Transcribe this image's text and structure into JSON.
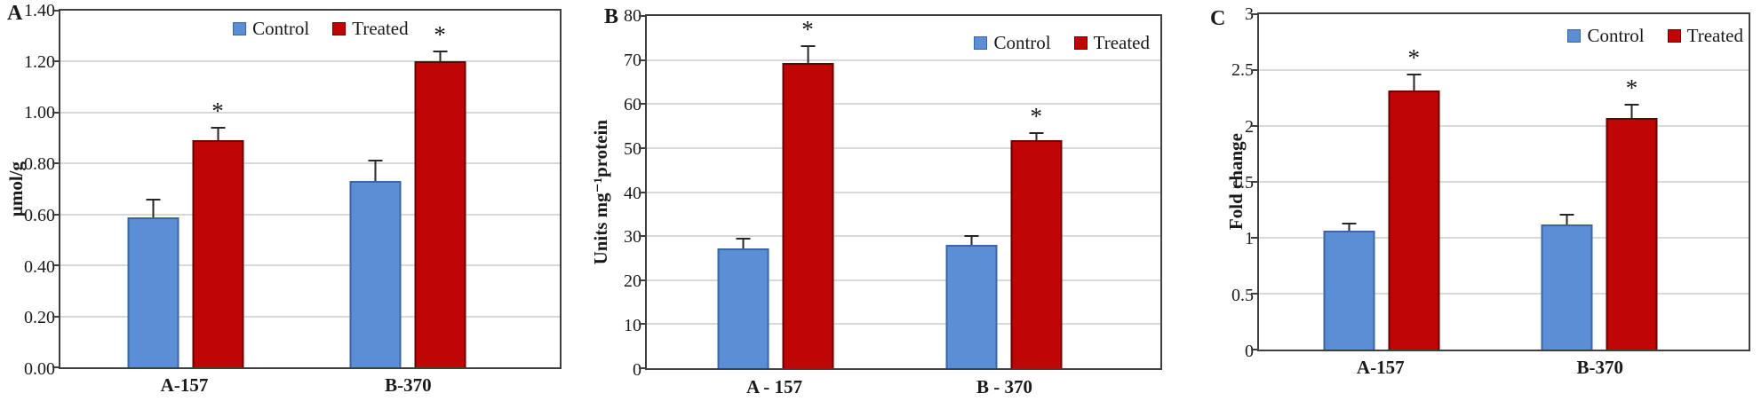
{
  "colors": {
    "control_fill": "#5B8FD5",
    "control_border": "#3A66A4",
    "treated_fill": "#C00505",
    "treated_border": "#6B0000",
    "gridline": "#D9D9D9",
    "frame": "#3F3F3F",
    "error_bar": "#262626"
  },
  "chart_data": [
    {
      "type": "bar",
      "panel_label": "A",
      "ylabel": "µmol/g",
      "ylim": [
        0,
        1.4
      ],
      "ytick_labels": [
        "0.00",
        "0.20",
        "0.40",
        "0.60",
        "0.80",
        "1.00",
        "1.20",
        "1.40"
      ],
      "categories": [
        "A-157",
        "B-370"
      ],
      "series": [
        {
          "name": "Control",
          "values": [
            0.59,
            0.73
          ],
          "errors": [
            0.07,
            0.08
          ],
          "sig": [
            false,
            false
          ]
        },
        {
          "name": "Treated",
          "values": [
            0.89,
            1.2
          ],
          "errors": [
            0.05,
            0.04
          ],
          "sig": [
            true,
            true
          ]
        }
      ],
      "sig_marker": "*",
      "legend_position": "top-center",
      "grid": true
    },
    {
      "type": "bar",
      "panel_label": "B",
      "ylabel": "Units mg⁻¹protein",
      "ylim": [
        0,
        80
      ],
      "ytick_labels": [
        "0",
        "10",
        "20",
        "30",
        "40",
        "50",
        "60",
        "70",
        "80"
      ],
      "categories": [
        "A - 157",
        "B - 370"
      ],
      "series": [
        {
          "name": "Control",
          "values": [
            27.2,
            28.0
          ],
          "errors": [
            2.2,
            2.0
          ],
          "sig": [
            false,
            false
          ]
        },
        {
          "name": "Treated",
          "values": [
            69.4,
            51.8
          ],
          "errors": [
            3.7,
            1.6
          ],
          "sig": [
            true,
            true
          ]
        }
      ],
      "sig_marker": "*",
      "legend_position": "top-right",
      "grid": true
    },
    {
      "type": "bar",
      "panel_label": "C",
      "ylabel": "Fold change",
      "ylim": [
        0,
        3
      ],
      "ytick_labels": [
        "0",
        "0.5",
        "1",
        "1.5",
        "2",
        "2.5",
        "3"
      ],
      "categories": [
        "A-157",
        "B-370"
      ],
      "series": [
        {
          "name": "Control",
          "values": [
            1.06,
            1.12
          ],
          "errors": [
            0.07,
            0.09
          ],
          "sig": [
            false,
            false
          ]
        },
        {
          "name": "Treated",
          "values": [
            2.32,
            2.07
          ],
          "errors": [
            0.14,
            0.12
          ],
          "sig": [
            true,
            true
          ]
        }
      ],
      "sig_marker": "*",
      "legend_position": "top-right",
      "grid": true
    }
  ]
}
